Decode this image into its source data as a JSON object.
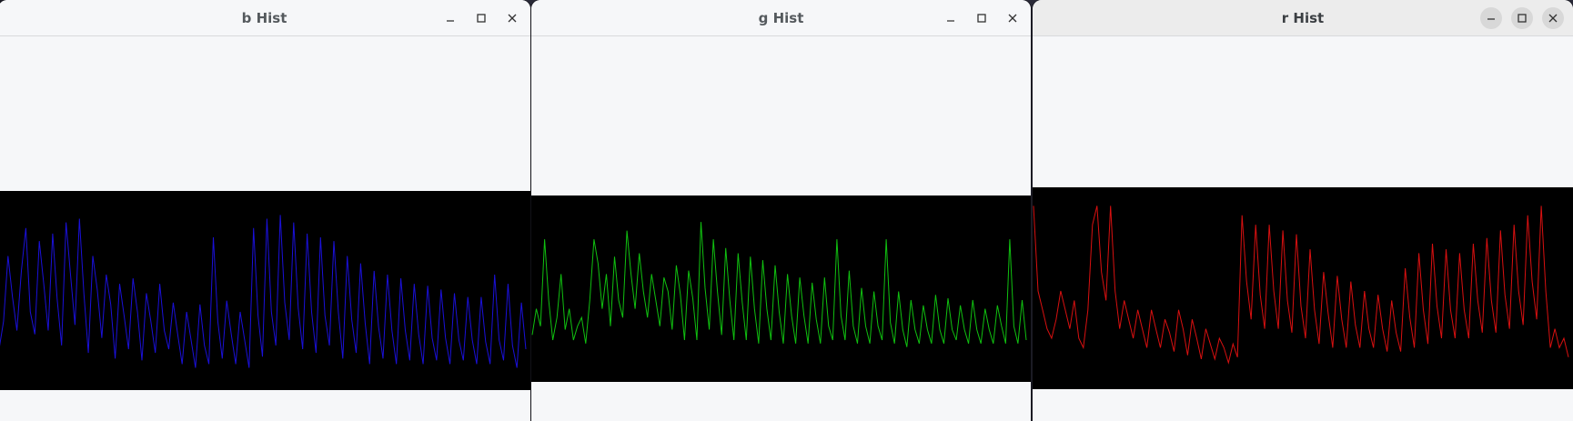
{
  "windows": [
    {
      "id": "b",
      "title": "b Hist",
      "active": false,
      "line_color": "#1a10d8",
      "controls": {
        "minimize": "minimize-icon",
        "maximize": "maximize-icon",
        "close": "close-icon"
      }
    },
    {
      "id": "g",
      "title": "g Hist",
      "active": false,
      "line_color": "#10c010",
      "controls": {
        "minimize": "minimize-icon",
        "maximize": "maximize-icon",
        "close": "close-icon"
      }
    },
    {
      "id": "r",
      "title": "r Hist",
      "active": true,
      "line_color": "#d81010",
      "controls": {
        "minimize": "minimize-icon",
        "maximize": "maximize-icon",
        "close": "close-icon"
      }
    }
  ],
  "chart_data": [
    {
      "type": "line",
      "series": [
        {
          "values": [
            20,
            35,
            70,
            48,
            30,
            62,
            85,
            40,
            28,
            78,
            55,
            30,
            82,
            47,
            22,
            88,
            60,
            33,
            90,
            50,
            18,
            70,
            52,
            26,
            60,
            44,
            15,
            55,
            38,
            20,
            58,
            40,
            14,
            50,
            35,
            18,
            55,
            30,
            20,
            45,
            28,
            12,
            40,
            25,
            10,
            44,
            22,
            12,
            80,
            35,
            15,
            46,
            28,
            12,
            40,
            25,
            10,
            85,
            38,
            16,
            90,
            40,
            22,
            92,
            45,
            25,
            88,
            42,
            20,
            82,
            40,
            18,
            80,
            38,
            22,
            78,
            40,
            15,
            70,
            36,
            18,
            66,
            34,
            12,
            62,
            32,
            15,
            60,
            30,
            12,
            58,
            30,
            14,
            55,
            28,
            12,
            54,
            26,
            14,
            52,
            26,
            12,
            50,
            25,
            14,
            48,
            25,
            12,
            48,
            24,
            12,
            60,
            25,
            14,
            55,
            22,
            10,
            45,
            20
          ]
        }
      ]
    },
    {
      "type": "line",
      "series": [
        {
          "values": [
            25,
            40,
            30,
            80,
            45,
            22,
            35,
            60,
            28,
            40,
            22,
            30,
            35,
            20,
            45,
            80,
            66,
            40,
            60,
            30,
            70,
            45,
            35,
            85,
            60,
            40,
            72,
            50,
            35,
            60,
            45,
            30,
            58,
            50,
            28,
            65,
            48,
            22,
            62,
            46,
            22,
            90,
            52,
            28,
            80,
            50,
            25,
            75,
            45,
            22,
            72,
            44,
            22,
            70,
            40,
            20,
            68,
            40,
            22,
            65,
            38,
            20,
            60,
            36,
            20,
            58,
            36,
            20,
            55,
            34,
            20,
            58,
            30,
            22,
            80,
            36,
            22,
            62,
            30,
            20,
            52,
            30,
            20,
            50,
            30,
            22,
            80,
            32,
            20,
            50,
            28,
            18,
            45,
            28,
            20,
            42,
            28,
            20,
            48,
            28,
            20,
            46,
            28,
            22,
            42,
            28,
            20,
            45,
            28,
            20,
            40,
            28,
            20,
            42,
            30,
            20,
            80,
            30,
            20,
            45,
            22
          ]
        }
      ]
    },
    {
      "type": "line",
      "series": [
        {
          "values": [
            95,
            50,
            40,
            30,
            25,
            35,
            50,
            40,
            30,
            45,
            25,
            20,
            40,
            85,
            95,
            60,
            45,
            95,
            50,
            30,
            45,
            35,
            25,
            40,
            30,
            20,
            40,
            30,
            20,
            35,
            28,
            18,
            40,
            30,
            16,
            35,
            25,
            14,
            30,
            22,
            14,
            25,
            20,
            12,
            22,
            15,
            90,
            55,
            35,
            85,
            48,
            30,
            85,
            50,
            30,
            82,
            45,
            28,
            80,
            42,
            25,
            72,
            40,
            22,
            60,
            38,
            20,
            58,
            35,
            20,
            55,
            32,
            20,
            50,
            30,
            20,
            48,
            30,
            18,
            45,
            28,
            18,
            62,
            36,
            20,
            70,
            40,
            22,
            75,
            42,
            25,
            72,
            40,
            25,
            70,
            40,
            25,
            75,
            45,
            28,
            78,
            45,
            28,
            82,
            48,
            30,
            85,
            50,
            32,
            90,
            55,
            35,
            95,
            50,
            20,
            30,
            20,
            25,
            15
          ]
        }
      ]
    }
  ]
}
